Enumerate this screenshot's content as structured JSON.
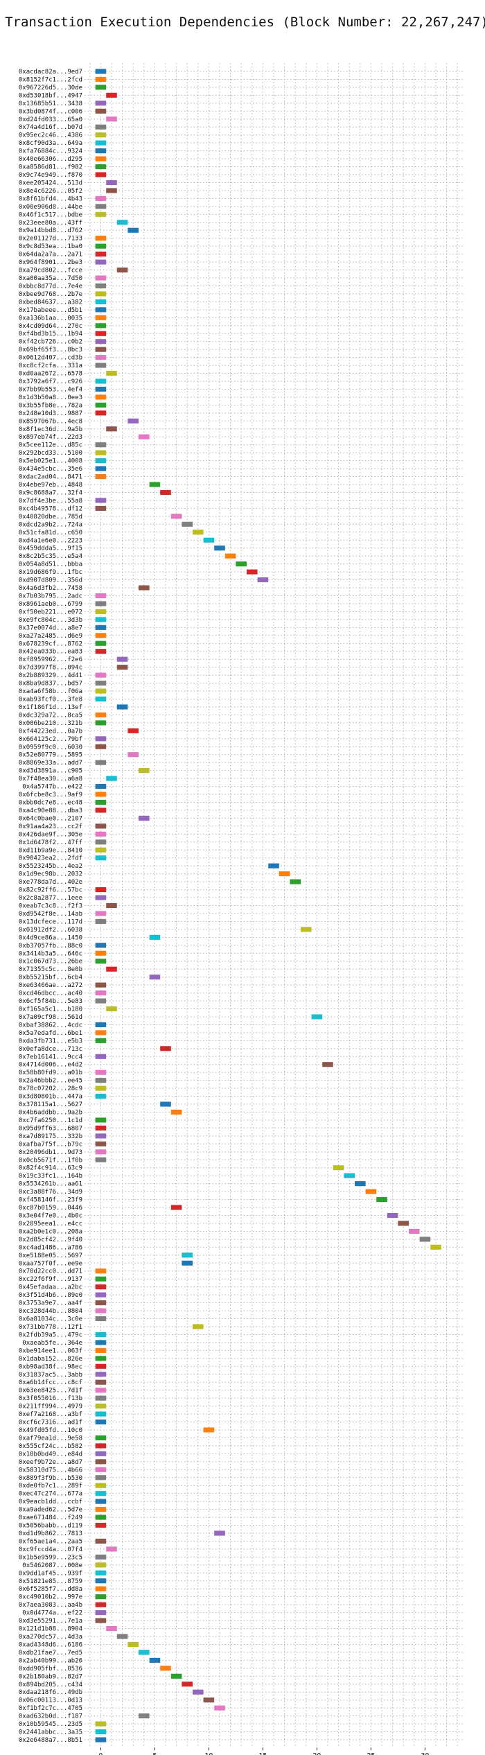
{
  "chart_data": {
    "type": "gantt",
    "title": "Transaction Execution Dependencies (Block Number: 22,267,247)",
    "xlabel": "",
    "ylabel": "",
    "xlim": [
      -1.5,
      33.5
    ],
    "xticks": [
      0,
      5,
      10,
      15,
      20,
      25,
      30
    ],
    "grid": true,
    "bar_duration": 1,
    "colors": [
      "#1f77b4",
      "#ff7f0e",
      "#2ca02c",
      "#d62728",
      "#9467bd",
      "#8c564b",
      "#e377c2",
      "#7f7f7f",
      "#bcbd22",
      "#17becf"
    ],
    "transactions": [
      {
        "label": "0xacdac82a...9ed7",
        "start": 0
      },
      {
        "label": "0x8152f7c1...2fcd",
        "start": 0
      },
      {
        "label": "0x967226d5...30de",
        "start": 0
      },
      {
        "label": "0xd53018bf...4947",
        "start": 1
      },
      {
        "label": "0x13685b51...3438",
        "start": 0
      },
      {
        "label": "0x3bd0874f...c006",
        "start": 0
      },
      {
        "label": "0xd24fd033...65a0",
        "start": 1
      },
      {
        "label": "0x74a4d16f...b07d",
        "start": 0
      },
      {
        "label": "0x95ec2c46...4386",
        "start": 0
      },
      {
        "label": "0x8cf90d3a...649a",
        "start": 0
      },
      {
        "label": "0xfa76884c...9324",
        "start": 0
      },
      {
        "label": "0x40e66306...d295",
        "start": 0
      },
      {
        "label": "0xa8586d81...f982",
        "start": 0
      },
      {
        "label": "0x9c74e949...f870",
        "start": 0
      },
      {
        "label": "0xee205424...513d",
        "start": 1
      },
      {
        "label": "0x8e4c6226...05f2",
        "start": 1
      },
      {
        "label": "0x8f61bfd4...4b43",
        "start": 0
      },
      {
        "label": "0x00e906d8...44be",
        "start": 0
      },
      {
        "label": "0x46f1c517...bdbe",
        "start": 0
      },
      {
        "label": "0x23eee80a...43ff",
        "start": 2
      },
      {
        "label": "0x9a14bbd8...d762",
        "start": 3
      },
      {
        "label": "0x2e01127d...7133",
        "start": 0
      },
      {
        "label": "0x9c8d53ea...1ba0",
        "start": 0
      },
      {
        "label": "0x64da2a7a...2a71",
        "start": 0
      },
      {
        "label": "0x964f8901...2be3",
        "start": 0
      },
      {
        "label": "0xa79cd802...fcce",
        "start": 2
      },
      {
        "label": "0xa00aa35a...7d50",
        "start": 0
      },
      {
        "label": "0xbbc8d77d...7e4e",
        "start": 0
      },
      {
        "label": "0xbee9d768...2b7e",
        "start": 0
      },
      {
        "label": "0xbed84637...a382",
        "start": 0
      },
      {
        "label": "0x17babeee...d5b1",
        "start": 0
      },
      {
        "label": "0xa136b1aa...0035",
        "start": 0
      },
      {
        "label": "0x4cd09d64...270c",
        "start": 0
      },
      {
        "label": "0xf4bd3b15...1b94",
        "start": 0
      },
      {
        "label": "0xf42cb726...c0b2",
        "start": 0
      },
      {
        "label": "0x69bf65f3...8bc3",
        "start": 0
      },
      {
        "label": "0x0612d407...cd3b",
        "start": 0
      },
      {
        "label": "0xc8cf2cfa...331a",
        "start": 0
      },
      {
        "label": "0xd0aa2672...6578",
        "start": 1
      },
      {
        "label": "0x3792a6f7...c926",
        "start": 0
      },
      {
        "label": "0x7bb9b553...4ef4",
        "start": 0
      },
      {
        "label": "0x1d3b50a8...0ee3",
        "start": 0
      },
      {
        "label": "0x3b55fb8e...782a",
        "start": 0
      },
      {
        "label": "0x248e10d3...9887",
        "start": 0
      },
      {
        "label": "0x8597067b...4ec8",
        "start": 3
      },
      {
        "label": "0x8f1ec36d...9a5b",
        "start": 1
      },
      {
        "label": "0x897eb74f...22d3",
        "start": 4
      },
      {
        "label": "0x5cee112e...d85c",
        "start": 0
      },
      {
        "label": "0x292bcd33...5100",
        "start": 0
      },
      {
        "label": "0x5eb025e1...4008",
        "start": 0
      },
      {
        "label": "0x434e5cbc...35e6",
        "start": 0
      },
      {
        "label": "0xdac2ad04...8471",
        "start": 0
      },
      {
        "label": "0x4ebe97eb...4848",
        "start": 5
      },
      {
        "label": "0x9c8688a7...32f4",
        "start": 6
      },
      {
        "label": "0x7df4e3be...55a8",
        "start": 0
      },
      {
        "label": "0xc4b49578...df12",
        "start": 0
      },
      {
        "label": "0x40820dbe...785d",
        "start": 7
      },
      {
        "label": "0xdcd2a9b2...724a",
        "start": 8
      },
      {
        "label": "0x51cfa81d...c650",
        "start": 9
      },
      {
        "label": "0xd4a1e6e0...2223",
        "start": 10
      },
      {
        "label": "0x459ddda5...9f15",
        "start": 11
      },
      {
        "label": "0x8c2b5c35...e5a4",
        "start": 12
      },
      {
        "label": "0x054a8d51...bbba",
        "start": 13
      },
      {
        "label": "0x19d686f9...1fbc",
        "start": 14
      },
      {
        "label": "0xd907d809...356d",
        "start": 15
      },
      {
        "label": "0x4a6d3fb2...7458",
        "start": 4
      },
      {
        "label": "0x7b03b795...2adc",
        "start": 0
      },
      {
        "label": "0x8961aeb0...6799",
        "start": 0
      },
      {
        "label": "0xf50eb221...e072",
        "start": 0
      },
      {
        "label": "0xe9fc804c...3d3b",
        "start": 0
      },
      {
        "label": "0x37e0074d...a8e7",
        "start": 0
      },
      {
        "label": "0xa27a2485...d6e9",
        "start": 0
      },
      {
        "label": "0x678239cf...8762",
        "start": 0
      },
      {
        "label": "0x42ea033b...ea83",
        "start": 0
      },
      {
        "label": "0xf8959962...f2e6",
        "start": 2
      },
      {
        "label": "0x7d3997f8...094c",
        "start": 2
      },
      {
        "label": "0x2b889329...4d41",
        "start": 0
      },
      {
        "label": "0x8ba9d837...bd57",
        "start": 0
      },
      {
        "label": "0xa4a6f58b...f06a",
        "start": 0
      },
      {
        "label": "0xab93fcf0...3fe8",
        "start": 0
      },
      {
        "label": "0x1f186f1d...13ef",
        "start": 2
      },
      {
        "label": "0xdc329a72...8ca5",
        "start": 0
      },
      {
        "label": "0x006be210...321b",
        "start": 0
      },
      {
        "label": "0xf44223ed...0a7b",
        "start": 3
      },
      {
        "label": "0x664125c2...79bf",
        "start": 0
      },
      {
        "label": "0x0959f9c0...6030",
        "start": 0
      },
      {
        "label": "0x52e80779...5895",
        "start": 3
      },
      {
        "label": "0x8869e33a...add7",
        "start": 0
      },
      {
        "label": "0xd3d3891a...c905",
        "start": 4
      },
      {
        "label": "0x7f48ea30...a6a8",
        "start": 1
      },
      {
        "label": "0x4a5747b...e422",
        "start": 0
      },
      {
        "label": "0x6fcbe8c3...9af9",
        "start": 0
      },
      {
        "label": "0xbb0dc7e8...ec48",
        "start": 0
      },
      {
        "label": "0xa4c90e88...dba3",
        "start": 0
      },
      {
        "label": "0x64c0bae0...2107",
        "start": 4
      },
      {
        "label": "0x91aa4a23...cc2f",
        "start": 0
      },
      {
        "label": "0x426dae9f...305e",
        "start": 0
      },
      {
        "label": "0x1d6478f2...47ff",
        "start": 0
      },
      {
        "label": "0xd11b9a9e...8410",
        "start": 0
      },
      {
        "label": "0x90423ea2...2fdf",
        "start": 0
      },
      {
        "label": "0x5523245b...4ea2",
        "start": 16
      },
      {
        "label": "0x1d9ec98b...2032",
        "start": 17
      },
      {
        "label": "0xe778da7d...402e",
        "start": 18
      },
      {
        "label": "0x82c92ff6...57bc",
        "start": 0
      },
      {
        "label": "0x2c8a2877...1eee",
        "start": 0
      },
      {
        "label": "0xeab7c3c8...f2f3",
        "start": 1
      },
      {
        "label": "0xd9542f8e...14ab",
        "start": 0
      },
      {
        "label": "0x13dcfece...117d",
        "start": 0
      },
      {
        "label": "0x01912df2...6038",
        "start": 19
      },
      {
        "label": "0x4d9ce86a...1450",
        "start": 5
      },
      {
        "label": "0xb37057fb...88c0",
        "start": 0
      },
      {
        "label": "0x3414b3a5...646c",
        "start": 0
      },
      {
        "label": "0x1c067d73...26be",
        "start": 0
      },
      {
        "label": "0x71355c5c...8e0b",
        "start": 1
      },
      {
        "label": "0xb55215bf...6cb4",
        "start": 5
      },
      {
        "label": "0xe63466ae...a272",
        "start": 0
      },
      {
        "label": "0xcd46dbcc...ac40",
        "start": 0
      },
      {
        "label": "0x6cf5f84b...5e83",
        "start": 0
      },
      {
        "label": "0xf165a5c1...b180",
        "start": 1
      },
      {
        "label": "0x7a09cf98...561d",
        "start": 20
      },
      {
        "label": "0xbaf38862...4cdc",
        "start": 0
      },
      {
        "label": "0x5a7edafd...6be1",
        "start": 0
      },
      {
        "label": "0xda3fb731...e5b3",
        "start": 0
      },
      {
        "label": "0x0efa8dce...713c",
        "start": 6
      },
      {
        "label": "0x7eb16141...9cc4",
        "start": 0
      },
      {
        "label": "0x4714d006...e4d2",
        "start": 21
      },
      {
        "label": "0x58b80fd9...a01b",
        "start": 0
      },
      {
        "label": "0x2a46bbb2...ee45",
        "start": 0
      },
      {
        "label": "0x78c07202...28c9",
        "start": 0
      },
      {
        "label": "0x3d80801b...447a",
        "start": 0
      },
      {
        "label": "0x378115a1...5627",
        "start": 6
      },
      {
        "label": "0x4b6addbb...9a2b",
        "start": 7
      },
      {
        "label": "0xc7fa6250...1c1d",
        "start": 0
      },
      {
        "label": "0x95d9ff63...6807",
        "start": 0
      },
      {
        "label": "0xa7d89175...332b",
        "start": 0
      },
      {
        "label": "0xafba7f5f...b79c",
        "start": 0
      },
      {
        "label": "0x20496db1...9d73",
        "start": 0
      },
      {
        "label": "0x0cb5671f...1f0b",
        "start": 0
      },
      {
        "label": "0x82f4c914...63c9",
        "start": 22
      },
      {
        "label": "0x19c33fc1...164b",
        "start": 23
      },
      {
        "label": "0x5534261b...aa61",
        "start": 24
      },
      {
        "label": "0xc3a88f76...34d9",
        "start": 25
      },
      {
        "label": "0xf458146f...23f9",
        "start": 26
      },
      {
        "label": "0xc87b0159...0446",
        "start": 7
      },
      {
        "label": "0x3e04f7e0...4b0c",
        "start": 27
      },
      {
        "label": "0x2895eea1...e4cc",
        "start": 28
      },
      {
        "label": "0xa2b0e1c0...208a",
        "start": 29
      },
      {
        "label": "0x2d85cf42...9f40",
        "start": 30
      },
      {
        "label": "0xc4ad1486...a786",
        "start": 31
      },
      {
        "label": "0xe5188e05...5697",
        "start": 8
      },
      {
        "label": "0xaa757f0f...ee9e",
        "start": 8
      },
      {
        "label": "0x70d22cc0...dd71",
        "start": 0
      },
      {
        "label": "0xc22f6f9f...9137",
        "start": 0
      },
      {
        "label": "0x45efadaa...a2bc",
        "start": 0
      },
      {
        "label": "0x3f51d4b6...89e0",
        "start": 0
      },
      {
        "label": "0x3753a9e7...aa4f",
        "start": 0
      },
      {
        "label": "0xc328d44b...8804",
        "start": 0
      },
      {
        "label": "0x6a81034c...3c0e",
        "start": 0
      },
      {
        "label": "0x731bb778...12f1",
        "start": 9
      },
      {
        "label": "0x2fdb39a5...479c",
        "start": 0
      },
      {
        "label": "0xaeab5fe...364e",
        "start": 0
      },
      {
        "label": "0xbe914ee1...063f",
        "start": 0
      },
      {
        "label": "0x1daba152...826e",
        "start": 0
      },
      {
        "label": "0xb98ad38f...98ec",
        "start": 0
      },
      {
        "label": "0x31837ac5...3abb",
        "start": 0
      },
      {
        "label": "0xa6b14fcc...c8cf",
        "start": 0
      },
      {
        "label": "0x63ee8425...7d1f",
        "start": 0
      },
      {
        "label": "0x3f055016...f13b",
        "start": 0
      },
      {
        "label": "0x211ff994...4979",
        "start": 0
      },
      {
        "label": "0xef7a2168...a3bf",
        "start": 0
      },
      {
        "label": "0xcf6c7316...ad1f",
        "start": 0
      },
      {
        "label": "0x49fd05fd...10c0",
        "start": 10
      },
      {
        "label": "0xaf79ea1d...9e58",
        "start": 0
      },
      {
        "label": "0x555cf24c...b582",
        "start": 0
      },
      {
        "label": "0x10b0bd49...e84d",
        "start": 0
      },
      {
        "label": "0xeef9b72e...a8d7",
        "start": 0
      },
      {
        "label": "0x58310d75...4b66",
        "start": 0
      },
      {
        "label": "0x889f3f9b...b530",
        "start": 0
      },
      {
        "label": "0xde0fb7c1...289f",
        "start": 0
      },
      {
        "label": "0xec47c274...677a",
        "start": 0
      },
      {
        "label": "0x9eacb1dd...ccbf",
        "start": 0
      },
      {
        "label": "0xa9aded62...5d7e",
        "start": 0
      },
      {
        "label": "0xae671484...f249",
        "start": 0
      },
      {
        "label": "0x5056babb...d119",
        "start": 0
      },
      {
        "label": "0xd1d9b862...7813",
        "start": 11
      },
      {
        "label": "0xf65ae1a4...2aa5",
        "start": 0
      },
      {
        "label": "0xc9fccd4a...07f4",
        "start": 1
      },
      {
        "label": "0x1b5e9599...23c5",
        "start": 0
      },
      {
        "label": "0x5462087...008e",
        "start": 0
      },
      {
        "label": "0x9dd1af45...939f",
        "start": 0
      },
      {
        "label": "0x51821e85...8759",
        "start": 0
      },
      {
        "label": "0x6f5285f7...dd8a",
        "start": 0
      },
      {
        "label": "0xc49010b2...997e",
        "start": 0
      },
      {
        "label": "0x7aea3083...aa4b",
        "start": 0
      },
      {
        "label": "0x0d4774a...ef22",
        "start": 0
      },
      {
        "label": "0xd3e55291...7e1a",
        "start": 0
      },
      {
        "label": "0x121d1b88...8904",
        "start": 1
      },
      {
        "label": "0xa270dc57...4d3a",
        "start": 2
      },
      {
        "label": "0xad4348d6...6186",
        "start": 3
      },
      {
        "label": "0xdb21fae7...7ed5",
        "start": 4
      },
      {
        "label": "0x2ab40b99...ab26",
        "start": 5
      },
      {
        "label": "0xdd905fbf...0536",
        "start": 6
      },
      {
        "label": "0x2b180ab9...82d7",
        "start": 7
      },
      {
        "label": "0x894bd205...c434",
        "start": 8
      },
      {
        "label": "0xdaa218f6...49db",
        "start": 9
      },
      {
        "label": "0x06c00113...0d13",
        "start": 10
      },
      {
        "label": "0xf1bf2c7c...4705",
        "start": 11
      },
      {
        "label": "0xad632b0d...f187",
        "start": 4
      },
      {
        "label": "0x10b59545...23d5",
        "start": 0
      },
      {
        "label": "0x2441abbc...3a35",
        "start": 0
      },
      {
        "label": "0x2e6488a7...8b51",
        "start": 0
      }
    ]
  }
}
